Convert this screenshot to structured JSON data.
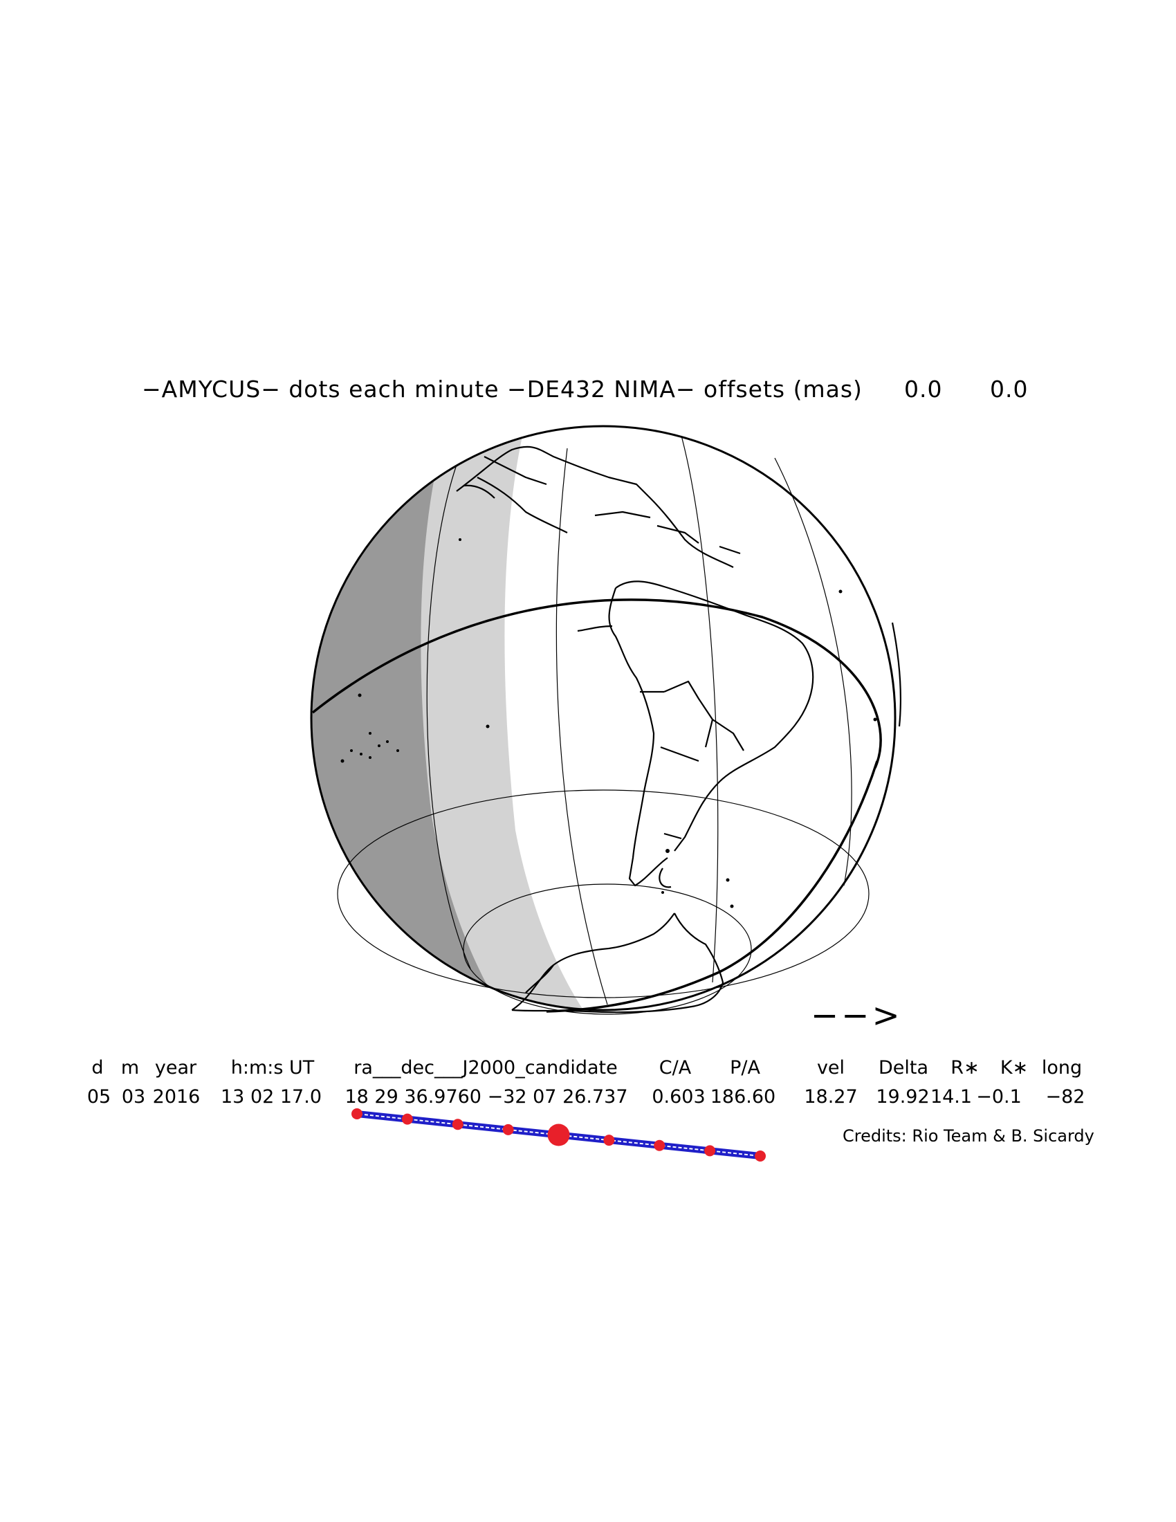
{
  "title": {
    "text": "−AMYCUS− dots each minute −DE432 NIMA− offsets (mas)",
    "offset_ra": "0.0",
    "offset_dec": "0.0"
  },
  "table": {
    "headers": [
      "d",
      "m",
      "year",
      "h:m:s UT",
      "ra___dec___J2000_candidate",
      "C/A",
      "P/A",
      "vel",
      "Delta",
      "R∗",
      "K∗",
      "long"
    ],
    "values": [
      "05",
      "03",
      "2016",
      "13 02 17.0",
      "18 29 36.9760 −32 07 26.737",
      "0.603",
      "186.60",
      "18.27",
      "19.92",
      "14.1",
      "−0.1",
      "−82"
    ]
  },
  "credits": "Credits: Rio Team & B. Sicardy",
  "direction_arrow": "−−>",
  "shadow_track": {
    "dots": 9,
    "central_dot_index": 4
  },
  "colors": {
    "night_dark": "#999999",
    "night_light": "#d3d3d3",
    "shadow_path": "#1f1fc8",
    "dots": "#e8202a"
  }
}
